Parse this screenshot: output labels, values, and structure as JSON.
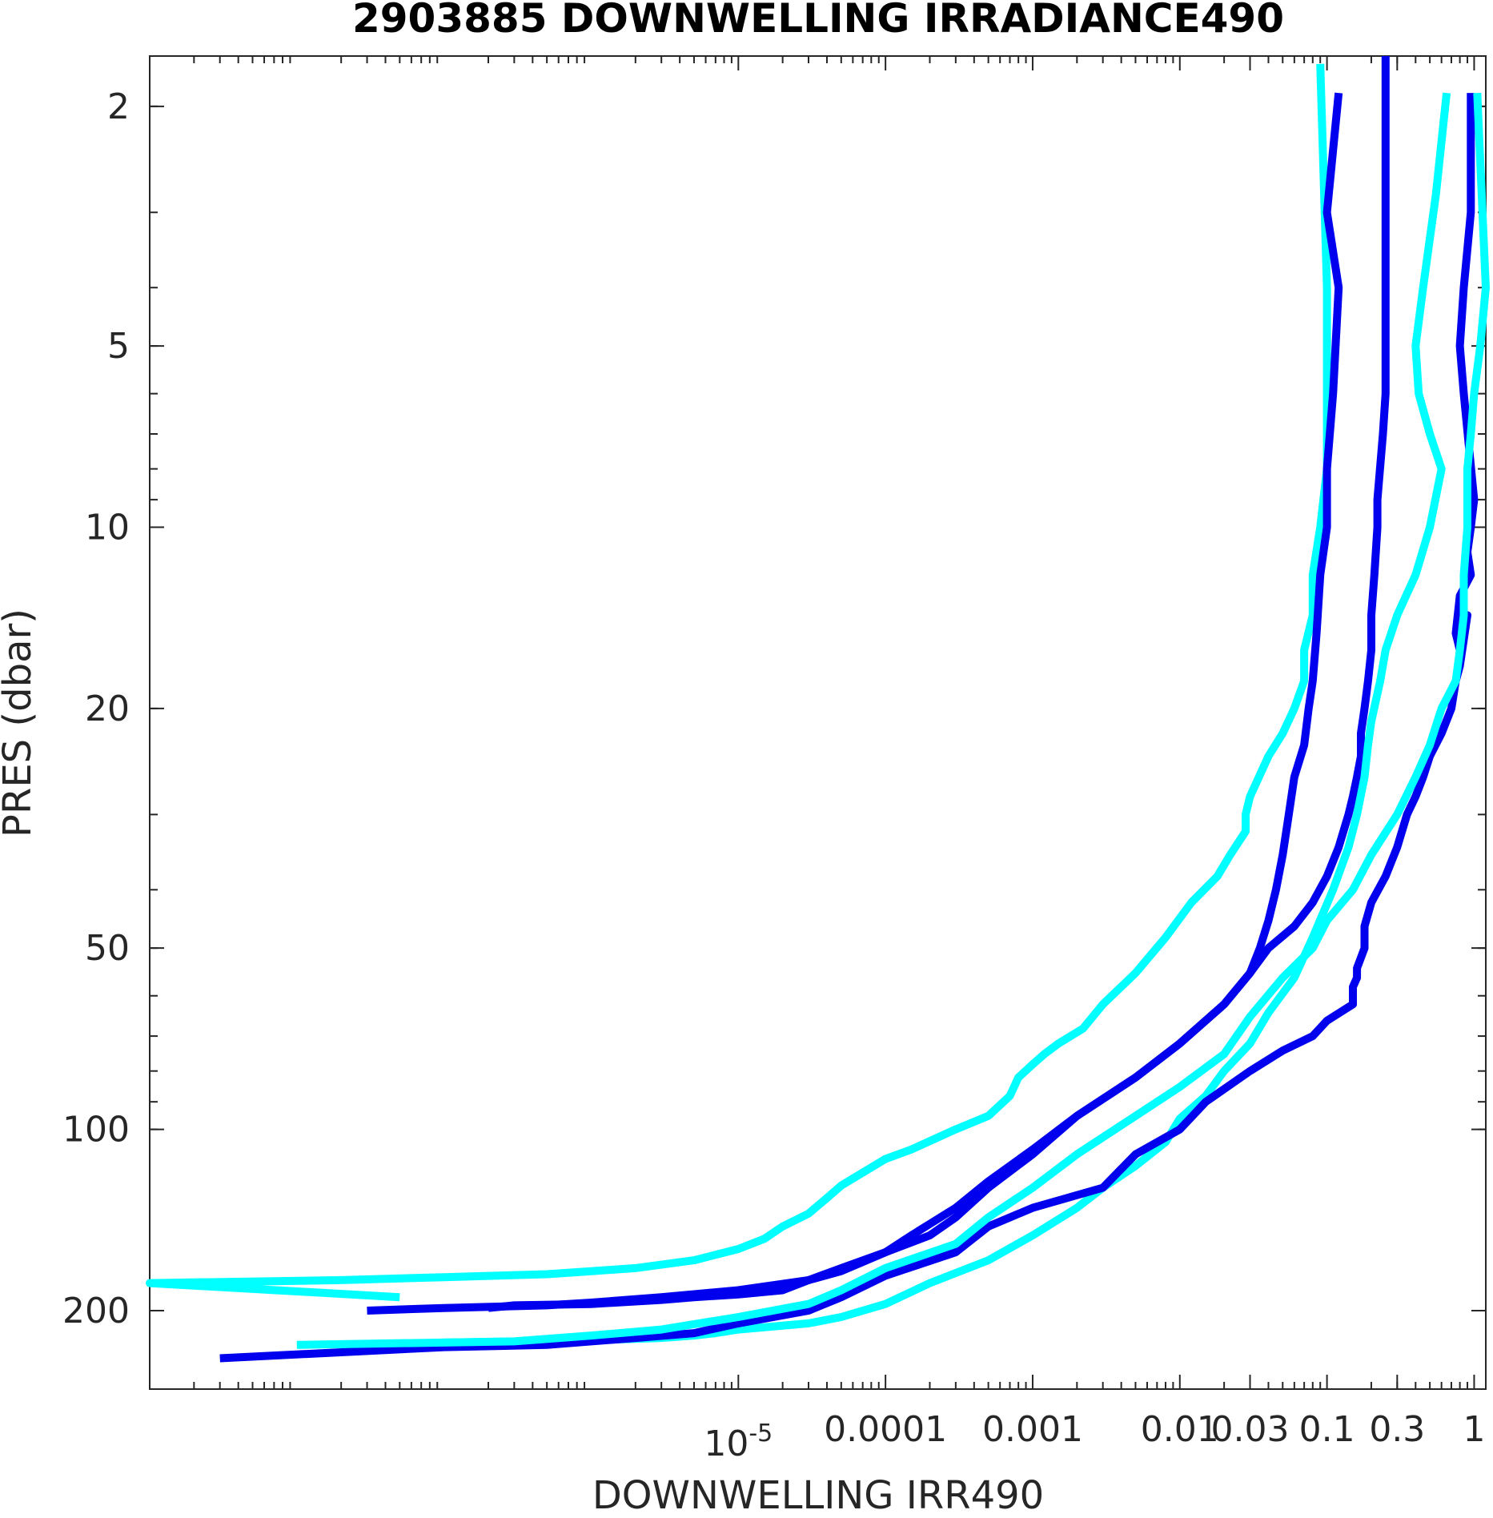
{
  "chart_data": {
    "type": "line",
    "title": "2903885  DOWNWELLING IRRADIANCE490",
    "xlabel": "DOWNWELLING IRR490",
    "ylabel": "PRES (dbar)",
    "x_scale": "log",
    "y_scale": "log",
    "y_reversed": true,
    "xlim": [
      1e-09,
      1.2
    ],
    "ylim": [
      1.65,
      270
    ],
    "grid": false,
    "x_ticks": [
      {
        "value": 1e-05,
        "label": "10",
        "sup": "-5"
      },
      {
        "value": 0.0001,
        "label": "0.0001"
      },
      {
        "value": 0.001,
        "label": "0.001"
      },
      {
        "value": 0.01,
        "label": "0.01"
      },
      {
        "value": 0.03,
        "label": "0.03"
      },
      {
        "value": 0.1,
        "label": "0.1"
      },
      {
        "value": 0.3,
        "label": "0.3"
      },
      {
        "value": 1,
        "label": "1"
      }
    ],
    "y_ticks": [
      {
        "value": 2,
        "label": "2"
      },
      {
        "value": 5,
        "label": "5"
      },
      {
        "value": 10,
        "label": "10"
      },
      {
        "value": 20,
        "label": "20"
      },
      {
        "value": 50,
        "label": "50"
      },
      {
        "value": 100,
        "label": "100"
      },
      {
        "value": 200,
        "label": "200"
      }
    ],
    "colors": {
      "blue": "#0000ee",
      "cyan": "#00ffff"
    },
    "series": [
      {
        "color": "cyan",
        "x": [
          0.09,
          0.1,
          0.1,
          0.1,
          0.09,
          0.08,
          0.08,
          0.07,
          0.07,
          0.06,
          0.05,
          0.04,
          0.03,
          0.028,
          0.028,
          0.022,
          0.018,
          0.012,
          0.008,
          0.005,
          0.003,
          0.0022,
          0.0015,
          0.0012,
          0.001,
          0.0008,
          0.0007,
          0.0005,
          0.0003,
          0.00015,
          0.0001,
          7e-05,
          5e-05,
          4e-05,
          3e-05,
          2e-05,
          1.5e-05,
          1e-05,
          5e-06,
          2e-06,
          1e-06,
          5e-07,
          1e-07,
          2e-08,
          1e-09,
          5e-08
        ],
        "y": [
          1.7,
          4,
          6,
          8,
          10,
          12,
          14,
          16,
          18,
          20,
          22,
          24,
          28,
          30,
          32,
          35,
          38,
          42,
          48,
          55,
          62,
          68,
          72,
          75,
          78,
          82,
          88,
          95,
          100,
          108,
          112,
          118,
          124,
          130,
          138,
          145,
          152,
          158,
          165,
          170,
          172,
          174,
          176,
          178,
          180,
          190
        ]
      },
      {
        "color": "blue",
        "x": [
          0.12,
          0.1,
          0.12,
          0.11,
          0.1,
          0.1,
          0.09,
          0.085,
          0.08,
          0.075,
          0.07,
          0.06,
          0.055,
          0.05,
          0.045,
          0.04,
          0.035,
          0.03,
          0.02,
          0.01,
          0.005,
          0.002,
          0.001,
          0.0005,
          0.0003,
          0.00015,
          0.0001,
          5e-05,
          3e-05,
          1e-05,
          3e-06,
          1e-06,
          5e-07,
          1e-07,
          3e-08
        ],
        "y": [
          1.9,
          3,
          4,
          6,
          8,
          10,
          12,
          15,
          18,
          20,
          23,
          26,
          30,
          35,
          40,
          45,
          50,
          55,
          62,
          72,
          82,
          95,
          108,
          122,
          135,
          150,
          160,
          172,
          178,
          185,
          190,
          194,
          196,
          198,
          200
        ]
      },
      {
        "color": "blue",
        "x": [
          0.25,
          0.25,
          0.25,
          0.25,
          0.24,
          0.22,
          0.22,
          0.21,
          0.2,
          0.2,
          0.19,
          0.18,
          0.17,
          0.17,
          0.16,
          0.15,
          0.14,
          0.12,
          0.1,
          0.08,
          0.06,
          0.04,
          0.03,
          0.02,
          0.01,
          0.005,
          0.002,
          0.001,
          0.0005,
          0.0003,
          0.0002,
          0.0001,
          5e-05,
          3e-05,
          2e-05,
          1e-05,
          5e-06,
          3e-06,
          1e-06,
          3e-07,
          2e-07
        ],
        "y": [
          1.6,
          2.5,
          4,
          6,
          7,
          9,
          10,
          12,
          14,
          16,
          18,
          20,
          22,
          24,
          26,
          28,
          30,
          34,
          38,
          42,
          46,
          50,
          55,
          62,
          72,
          82,
          95,
          110,
          125,
          140,
          150,
          160,
          170,
          178,
          185,
          188,
          190,
          192,
          195,
          196,
          198
        ]
      },
      {
        "color": "cyan",
        "x": [
          0.65,
          0.55,
          0.45,
          0.4,
          0.42,
          0.5,
          0.6,
          0.5,
          0.4,
          0.3,
          0.25,
          0.23,
          0.2,
          0.19,
          0.18,
          0.16,
          0.14,
          0.11,
          0.08,
          0.06,
          0.04,
          0.03,
          0.02,
          0.015,
          0.01,
          0.008,
          0.005,
          0.003,
          0.002,
          0.001,
          0.0005,
          0.0002,
          0.0001,
          5e-05,
          3e-05,
          1e-05,
          7e-06,
          5e-06,
          3e-06,
          1e-06,
          1e-07,
          2e-08
        ],
        "y": [
          1.9,
          2.8,
          4,
          5,
          6,
          7,
          8,
          10,
          12,
          14,
          16,
          18,
          21,
          23,
          26,
          30,
          34,
          40,
          48,
          56,
          64,
          72,
          80,
          88,
          96,
          105,
          115,
          125,
          135,
          150,
          165,
          180,
          195,
          205,
          210,
          215,
          218,
          220,
          222,
          224,
          226,
          230
        ]
      },
      {
        "color": "blue",
        "x": [
          0.95,
          0.95,
          0.85,
          0.8,
          0.85,
          1.0,
          0.95,
          0.9,
          0.95,
          0.8,
          0.75,
          0.8,
          0.9,
          0.8,
          0.75,
          0.7,
          0.6,
          0.5,
          0.45,
          0.4,
          0.35,
          0.3,
          0.25,
          0.2,
          0.18,
          0.18,
          0.16,
          0.16,
          0.15,
          0.15,
          0.15,
          0.1,
          0.08,
          0.05,
          0.03,
          0.015,
          0.01,
          0.005,
          0.003,
          0.001,
          0.0005,
          0.0003,
          0.0001,
          5e-05,
          3e-05,
          1e-05,
          5e-06,
          2e-06,
          1e-06,
          5e-07,
          1e-07,
          3e-09
        ],
        "y": [
          1.9,
          3,
          4,
          5,
          6,
          9,
          10,
          11,
          12,
          13,
          15,
          16,
          14,
          17,
          18,
          20,
          22,
          24,
          26,
          28,
          30,
          34,
          38,
          42,
          46,
          50,
          54,
          56,
          58,
          60,
          62,
          66,
          70,
          74,
          80,
          90,
          100,
          110,
          125,
          135,
          145,
          160,
          175,
          190,
          200,
          210,
          218,
          222,
          225,
          228,
          230,
          240
        ]
      },
      {
        "color": "cyan",
        "x": [
          1.05,
          1.2,
          1.1,
          1.0,
          0.95,
          0.9,
          0.9,
          0.85,
          0.85,
          0.8,
          0.75,
          0.6,
          0.5,
          0.4,
          0.3,
          0.2,
          0.15,
          0.1,
          0.08,
          0.05,
          0.03,
          0.02,
          0.01,
          0.005,
          0.002,
          0.001,
          0.0005,
          0.0003,
          0.0001,
          5e-05,
          3e-05,
          1e-05,
          3e-06,
          1e-06,
          3e-07,
          1e-08
        ],
        "y": [
          1.9,
          4,
          5,
          6,
          7,
          8,
          10,
          12,
          14,
          16,
          18,
          20,
          23,
          26,
          30,
          35,
          40,
          45,
          50,
          56,
          65,
          75,
          85,
          95,
          110,
          125,
          140,
          155,
          170,
          185,
          195,
          205,
          215,
          220,
          225,
          228
        ]
      }
    ]
  }
}
